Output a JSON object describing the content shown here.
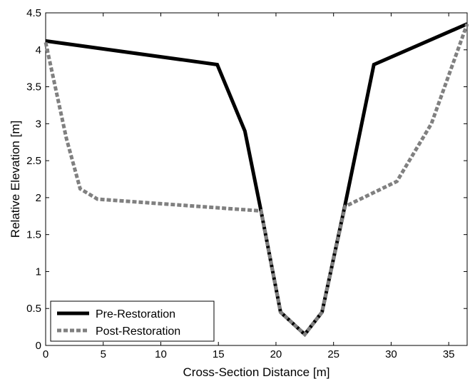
{
  "chart_data": {
    "type": "line",
    "title": "",
    "xlabel": "Cross-Section Distance [m]",
    "ylabel": "Relative Elevation [m]",
    "xlim": [
      0,
      36.6
    ],
    "ylim": [
      0,
      4.5
    ],
    "xticks": [
      0,
      5,
      10,
      15,
      20,
      25,
      30,
      35
    ],
    "yticks": [
      0,
      0.5,
      1,
      1.5,
      2,
      2.5,
      3,
      3.5,
      4,
      4.5
    ],
    "xtick_labels": [
      "0",
      "5",
      "10",
      "15",
      "20",
      "25",
      "30",
      "35"
    ],
    "ytick_labels": [
      "0",
      "0.5",
      "1",
      "1.5",
      "2",
      "2.5",
      "3",
      "3.5",
      "4",
      "4.5"
    ],
    "grid": false,
    "legend_position": "bottom-left",
    "series": [
      {
        "name": "Pre-Restoration",
        "color": "#000000",
        "style": "solid",
        "x": [
          0,
          14.9,
          17.3,
          18.7,
          20.4,
          22.5,
          24.0,
          26.0,
          28.5,
          36.6
        ],
        "y": [
          4.12,
          3.8,
          2.9,
          1.82,
          0.45,
          0.15,
          0.45,
          1.9,
          3.8,
          4.35
        ]
      },
      {
        "name": "Post-Restoration",
        "color": "#808080",
        "style": "dashed",
        "x": [
          0,
          1.8,
          3.0,
          4.5,
          18.7,
          20.4,
          22.5,
          24.0,
          26.0,
          30.5,
          33.5,
          36.6
        ],
        "y": [
          4.1,
          2.8,
          2.12,
          1.98,
          1.82,
          0.45,
          0.15,
          0.45,
          1.88,
          2.22,
          3.0,
          4.35
        ]
      }
    ]
  }
}
